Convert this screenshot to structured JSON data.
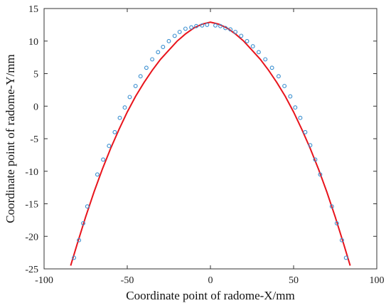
{
  "chart_data": {
    "type": "line",
    "title": "",
    "xlabel": "Coordinate point of radome-X/mm",
    "ylabel": "Coordinate point of radome-Y/mm",
    "xlim": [
      -100,
      100
    ],
    "ylim": [
      -25,
      15
    ],
    "xticks": [
      -100,
      -50,
      0,
      50,
      100
    ],
    "yticks": [
      15,
      10,
      5,
      0,
      -5,
      -10,
      -15,
      -20,
      -25
    ],
    "grid": false,
    "legend": "none",
    "colors": {
      "curve": "#e8141c",
      "markers": "#3a8fd0"
    },
    "series": [
      {
        "kind": "fitted-curve",
        "x": [
          -84,
          -80,
          -75,
          -70,
          -65,
          -60,
          -55,
          -50,
          -45,
          -40,
          -35,
          -30,
          -25,
          -20,
          -15,
          -10,
          -5,
          0,
          5,
          10,
          15,
          20,
          25,
          30,
          35,
          40,
          45,
          50,
          55,
          60,
          65,
          70,
          75,
          80,
          84
        ],
        "y": [
          -24.5,
          -21.1,
          -17.0,
          -13.2,
          -9.7,
          -6.5,
          -3.6,
          -0.9,
          1.5,
          3.6,
          5.5,
          7.2,
          8.6,
          10.0,
          11.1,
          12.0,
          12.6,
          12.9,
          12.6,
          12.0,
          11.1,
          10.0,
          8.6,
          7.2,
          5.5,
          3.6,
          1.5,
          -0.9,
          -3.6,
          -6.5,
          -9.7,
          -13.2,
          -17.0,
          -21.1,
          -24.5
        ]
      },
      {
        "kind": "measured-points",
        "x": [
          -82,
          -79,
          -76.5,
          -74,
          -68,
          -64.5,
          -61,
          -57.5,
          -54.5,
          -51.5,
          -48.5,
          -45,
          -42,
          -38.5,
          -35,
          -31.5,
          -28.5,
          -25,
          -21.5,
          -18.5,
          -15,
          -11.5,
          -8.5,
          -5,
          -2,
          3,
          6,
          9,
          12,
          15,
          18.5,
          22,
          25.5,
          29,
          33,
          37,
          41,
          44.5,
          48,
          51,
          54,
          57,
          60,
          63,
          66,
          73,
          76,
          79,
          81.5
        ],
        "y": [
          -23.3,
          -20.6,
          -18.0,
          -15.4,
          -10.5,
          -8.2,
          -6.1,
          -4.0,
          -1.8,
          -0.2,
          1.4,
          3.1,
          4.6,
          5.9,
          7.2,
          8.3,
          9.1,
          10.0,
          10.8,
          11.4,
          11.9,
          12.1,
          12.3,
          12.4,
          12.5,
          12.4,
          12.3,
          12.0,
          11.8,
          11.4,
          10.8,
          10.0,
          9.2,
          8.3,
          7.2,
          5.9,
          4.6,
          3.1,
          1.5,
          -0.2,
          -1.8,
          -4.0,
          -6.0,
          -8.2,
          -10.5,
          -15.4,
          -18.0,
          -20.6,
          -23.3
        ]
      }
    ]
  }
}
